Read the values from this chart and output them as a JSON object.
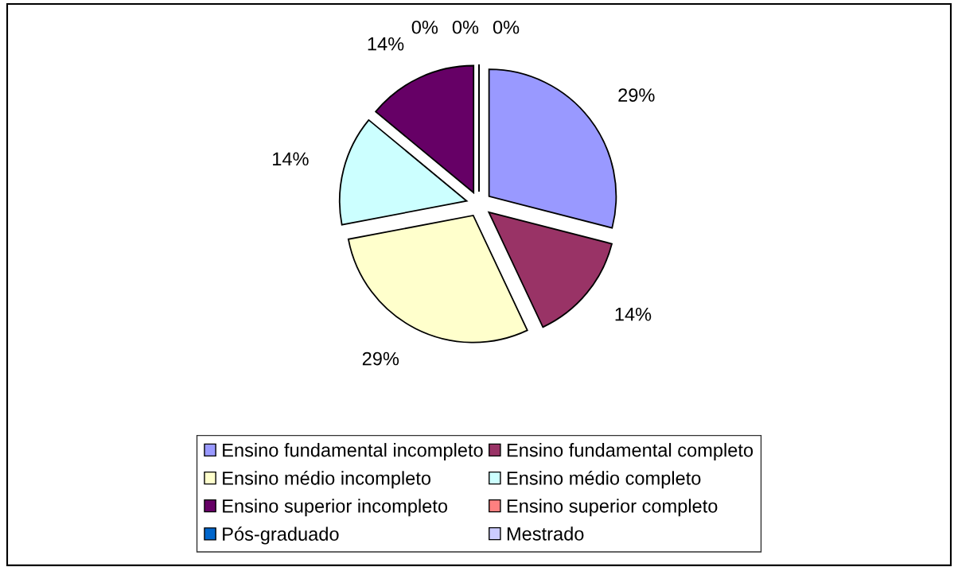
{
  "chart_data": {
    "type": "pie",
    "categories": [
      "Ensino fundamental incompleto",
      "Ensino fundamental completo",
      "Ensino médio incompleto",
      "Ensino médio completo",
      "Ensino superior incompleto",
      "Ensino superior completo",
      "Pós-graduado",
      "Mestrado"
    ],
    "values": [
      29,
      14,
      29,
      14,
      14,
      0,
      0,
      0
    ],
    "value_labels": [
      "29%",
      "14%",
      "29%",
      "14%",
      "14%",
      "0%",
      "0%",
      "0%"
    ],
    "colors": [
      "#9999ff",
      "#993366",
      "#ffffcc",
      "#ccffff",
      "#660066",
      "#ff8080",
      "#0066cc",
      "#ccccff"
    ],
    "legend": "bottom"
  }
}
